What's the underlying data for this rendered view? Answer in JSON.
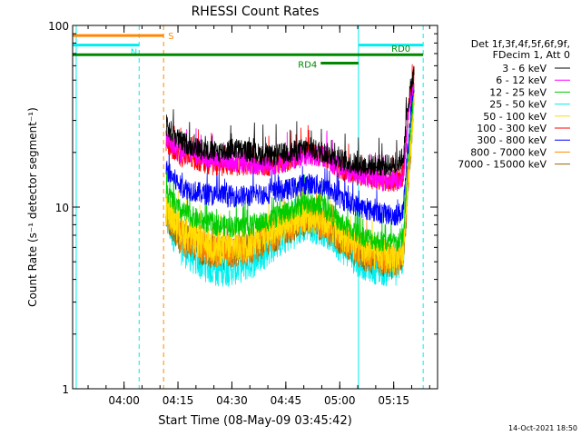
{
  "chart_data": {
    "type": "line",
    "title": "RHESSI Count Rates",
    "xlabel": "Start Time (08-May-09 03:45:42)",
    "ylabel": "Count Rate (s⁻¹ detector segment⁻¹)",
    "ylog": true,
    "ylim": [
      1,
      100
    ],
    "xlim_minutes": [
      0,
      101.5
    ],
    "x_ticks": [
      {
        "t": 14.3,
        "label": "04:00"
      },
      {
        "t": 29.3,
        "label": "04:15"
      },
      {
        "t": 44.3,
        "label": "04:30"
      },
      {
        "t": 59.3,
        "label": "04:45"
      },
      {
        "t": 74.3,
        "label": "05:00"
      },
      {
        "t": 89.3,
        "label": "05:15"
      }
    ],
    "y_ticks": [
      {
        "v": 1,
        "label": "1"
      },
      {
        "v": 10,
        "label": "10"
      },
      {
        "v": 100,
        "label": "100"
      }
    ],
    "legend": {
      "position": "right",
      "header_lines": [
        "Det 1f,3f,4f,5f,6f,9f,",
        "FDecim 1, Att 0"
      ]
    },
    "series": [
      {
        "name": "3 - 6 keV",
        "color": "#000000",
        "x": [
          26,
          30,
          35,
          40,
          45,
          50,
          55,
          60,
          65,
          70,
          75,
          80,
          85,
          90,
          92,
          93.5,
          95
        ],
        "y": [
          28,
          23,
          21,
          20,
          21,
          20,
          19,
          20,
          21,
          20,
          18,
          17,
          17,
          17,
          19,
          40,
          55
        ]
      },
      {
        "name": "6 - 12 keV",
        "color": "#ff00ff",
        "x": [
          26,
          30,
          35,
          40,
          45,
          50,
          55,
          60,
          65,
          70,
          75,
          80,
          85,
          90,
          92,
          93.5,
          95
        ],
        "y": [
          24,
          20,
          19,
          18,
          18,
          17,
          17,
          18,
          19,
          19,
          16,
          15,
          14,
          14,
          15,
          35,
          52
        ]
      },
      {
        "name": "12 - 25 keV",
        "color": "#00cc00",
        "x": [
          26,
          30,
          35,
          40,
          45,
          50,
          55,
          60,
          65,
          70,
          75,
          80,
          85,
          90,
          92,
          93.5,
          95
        ],
        "y": [
          12,
          9.5,
          8.5,
          8,
          7.8,
          7.9,
          8.5,
          9.5,
          10.5,
          10,
          8,
          7,
          6.5,
          6.3,
          7,
          20,
          45
        ]
      },
      {
        "name": "25 - 50 keV",
        "color": "#00eeee",
        "x": [
          26,
          30,
          35,
          40,
          45,
          50,
          55,
          60,
          65,
          70,
          75,
          80,
          85,
          90,
          92,
          93.5,
          95
        ],
        "y": [
          8.5,
          6,
          5,
          4.5,
          4.6,
          5,
          6,
          7,
          8,
          7.5,
          6,
          5,
          4.6,
          4.5,
          5.5,
          15,
          40
        ]
      },
      {
        "name": "50 - 100 keV",
        "color": "#ffdd00",
        "x": [
          26,
          30,
          35,
          40,
          45,
          50,
          55,
          60,
          65,
          70,
          75,
          80,
          85,
          90,
          92,
          93.5,
          95
        ],
        "y": [
          10,
          7.5,
          6.5,
          6,
          6,
          6.5,
          7.5,
          8.5,
          9,
          8.5,
          7,
          6,
          5.5,
          5.3,
          6,
          17,
          42
        ]
      },
      {
        "name": "100 - 300 keV",
        "color": "#ff0000",
        "x": [
          26,
          30,
          35,
          40,
          45,
          50,
          55,
          60,
          65,
          70,
          75,
          80,
          85,
          90,
          92,
          93.5,
          95
        ],
        "y": [
          23,
          19,
          18,
          17,
          17,
          17,
          17,
          18,
          20,
          19,
          16,
          15,
          14,
          13.5,
          15,
          36,
          57
        ]
      },
      {
        "name": "300 - 800 keV",
        "color": "#0000ff",
        "x": [
          26,
          30,
          35,
          40,
          45,
          50,
          55,
          60,
          65,
          70,
          75,
          80,
          85,
          90,
          92,
          93.5,
          95
        ],
        "y": [
          16,
          13,
          12,
          11.5,
          11.5,
          11.5,
          12,
          12.5,
          13.5,
          13,
          11,
          10,
          9.3,
          9,
          9.5,
          25,
          50
        ]
      },
      {
        "name": "800 - 7000 keV",
        "color": "#ff8800",
        "x": [
          26,
          30,
          35,
          40,
          45,
          50,
          55,
          60,
          65,
          70,
          75,
          80,
          85,
          90,
          92,
          93.5,
          95
        ],
        "y": [
          9.5,
          7,
          6.2,
          5.8,
          5.8,
          6.2,
          7,
          8,
          8.8,
          8.2,
          6.8,
          5.8,
          5.3,
          5.1,
          5.8,
          16,
          42
        ]
      },
      {
        "name": "7000 - 15000 keV",
        "color": "#996600",
        "x": [
          26,
          30,
          35,
          40,
          45,
          50,
          55,
          60,
          65,
          70,
          75,
          80,
          85,
          90,
          92,
          93.5,
          95
        ],
        "y": [
          9,
          6.8,
          6,
          5.6,
          5.6,
          6,
          6.8,
          7.8,
          8.6,
          8,
          6.6,
          5.6,
          5.1,
          5,
          5.6,
          15.5,
          41
        ]
      }
    ],
    "vertical_markers": [
      {
        "t": 1,
        "color": "#00eeee",
        "style": "solid"
      },
      {
        "t": 18.5,
        "color": "#00eeee",
        "style": "dashed"
      },
      {
        "t": 25.3,
        "color": "#ff8800",
        "style": "dashed"
      },
      {
        "t": 79.5,
        "color": "#00eeee",
        "style": "solid"
      },
      {
        "t": 97.5,
        "color": "#00eeee",
        "style": "dashed"
      }
    ],
    "state_bars": [
      {
        "label": "S",
        "color": "#ff8800",
        "t0": 0,
        "t1": 25.3,
        "y": 88
      },
      {
        "label": "N",
        "color": "#00eeee",
        "t0": 0,
        "t1": 18.5,
        "y": 78
      },
      {
        "label": "N",
        "color": "#00eeee",
        "t0": 79.5,
        "t1": 97.5,
        "y": 78
      },
      {
        "label": "RD0",
        "color": "#008800",
        "t0": 0,
        "t1": 97.5,
        "y": 69
      },
      {
        "label": "RD4",
        "color": "#008800",
        "t0": 69,
        "t1": 79.5,
        "y": 62
      }
    ],
    "timestamp": "14-Oct-2021 18:50"
  }
}
